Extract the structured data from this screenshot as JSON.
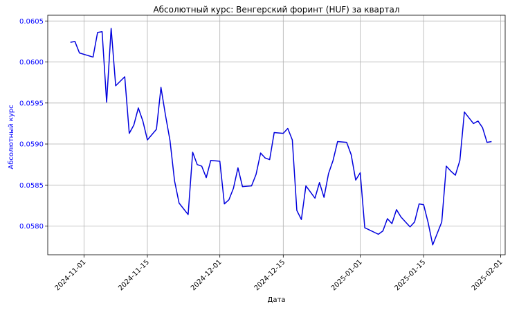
{
  "chart_data": {
    "type": "line",
    "title": "Абсолютный курс: Венгерский форинт (HUF) за квартал",
    "xlabel": "Дата",
    "ylabel": "Абсолютный курс",
    "xlim": [
      "2024-10-24",
      "2025-02-02"
    ],
    "ylim": [
      0.05765,
      0.06057
    ],
    "grid": true,
    "colors": {
      "line": "#0000dd",
      "ylabel": "#0000ff",
      "yticks": "#0000ff",
      "grid": "#b0b0b0",
      "axes": "#000000"
    },
    "x_ticks": [
      "2024-11-01",
      "2024-11-15",
      "2024-12-01",
      "2024-12-15",
      "2025-01-01",
      "2025-01-15",
      "2025-02-01"
    ],
    "y_ticks": [
      "0.0580",
      "0.0585",
      "0.0590",
      "0.0595",
      "0.0600",
      "0.0605"
    ],
    "series": [
      {
        "x": [
          "2024-10-29",
          "2024-10-30",
          "2024-10-31",
          "2024-11-03",
          "2024-11-04",
          "2024-11-05",
          "2024-11-06",
          "2024-11-07",
          "2024-11-08",
          "2024-11-10",
          "2024-11-11",
          "2024-11-12",
          "2024-11-13",
          "2024-11-14",
          "2024-11-15",
          "2024-11-17",
          "2024-11-18",
          "2024-11-19",
          "2024-11-20",
          "2024-11-21",
          "2024-11-22",
          "2024-11-24",
          "2024-11-25",
          "2024-11-26",
          "2024-11-27",
          "2024-11-28",
          "2024-11-29",
          "2024-12-01",
          "2024-12-02",
          "2024-12-03",
          "2024-12-04",
          "2024-12-05",
          "2024-12-06",
          "2024-12-08",
          "2024-12-09",
          "2024-12-10",
          "2024-12-11",
          "2024-12-12",
          "2024-12-13",
          "2024-12-15",
          "2024-12-16",
          "2024-12-17",
          "2024-12-18",
          "2024-12-19",
          "2024-12-20",
          "2024-12-22",
          "2024-12-23",
          "2024-12-24",
          "2024-12-25",
          "2024-12-26",
          "2024-12-27",
          "2024-12-29",
          "2024-12-30",
          "2024-12-31",
          "2025-01-01",
          "2025-01-02",
          "2025-01-05",
          "2025-01-06",
          "2025-01-07",
          "2025-01-08",
          "2025-01-09",
          "2025-01-10",
          "2025-01-12",
          "2025-01-13",
          "2025-01-14",
          "2025-01-15",
          "2025-01-16",
          "2025-01-17",
          "2025-01-19",
          "2025-01-20",
          "2025-01-21",
          "2025-01-22",
          "2025-01-23",
          "2025-01-24",
          "2025-01-26",
          "2025-01-27",
          "2025-01-28",
          "2025-01-29",
          "2025-01-30"
        ],
        "values": [
          0.06024,
          0.06025,
          0.06011,
          0.06006,
          0.06036,
          0.06037,
          0.05951,
          0.06041,
          0.05971,
          0.05982,
          0.05913,
          0.05923,
          0.05944,
          0.05928,
          0.05905,
          0.05918,
          0.05969,
          0.05935,
          0.05904,
          0.05855,
          0.05828,
          0.05814,
          0.0589,
          0.05875,
          0.05873,
          0.05859,
          0.0588,
          0.05879,
          0.05827,
          0.05832,
          0.05846,
          0.05871,
          0.05848,
          0.05849,
          0.05863,
          0.05889,
          0.05883,
          0.05881,
          0.05914,
          0.05913,
          0.05919,
          0.05905,
          0.05819,
          0.05808,
          0.05849,
          0.05834,
          0.05853,
          0.05835,
          0.05864,
          0.0588,
          0.05903,
          0.05902,
          0.05887,
          0.05856,
          0.05865,
          0.05798,
          0.0579,
          0.05794,
          0.05809,
          0.05803,
          0.0582,
          0.05811,
          0.05799,
          0.05805,
          0.05827,
          0.05826,
          0.05804,
          0.05777,
          0.05805,
          0.05873,
          0.05867,
          0.05862,
          0.0588,
          0.05939,
          0.05925,
          0.05928,
          0.0592,
          0.05902,
          0.05903
        ]
      }
    ]
  }
}
